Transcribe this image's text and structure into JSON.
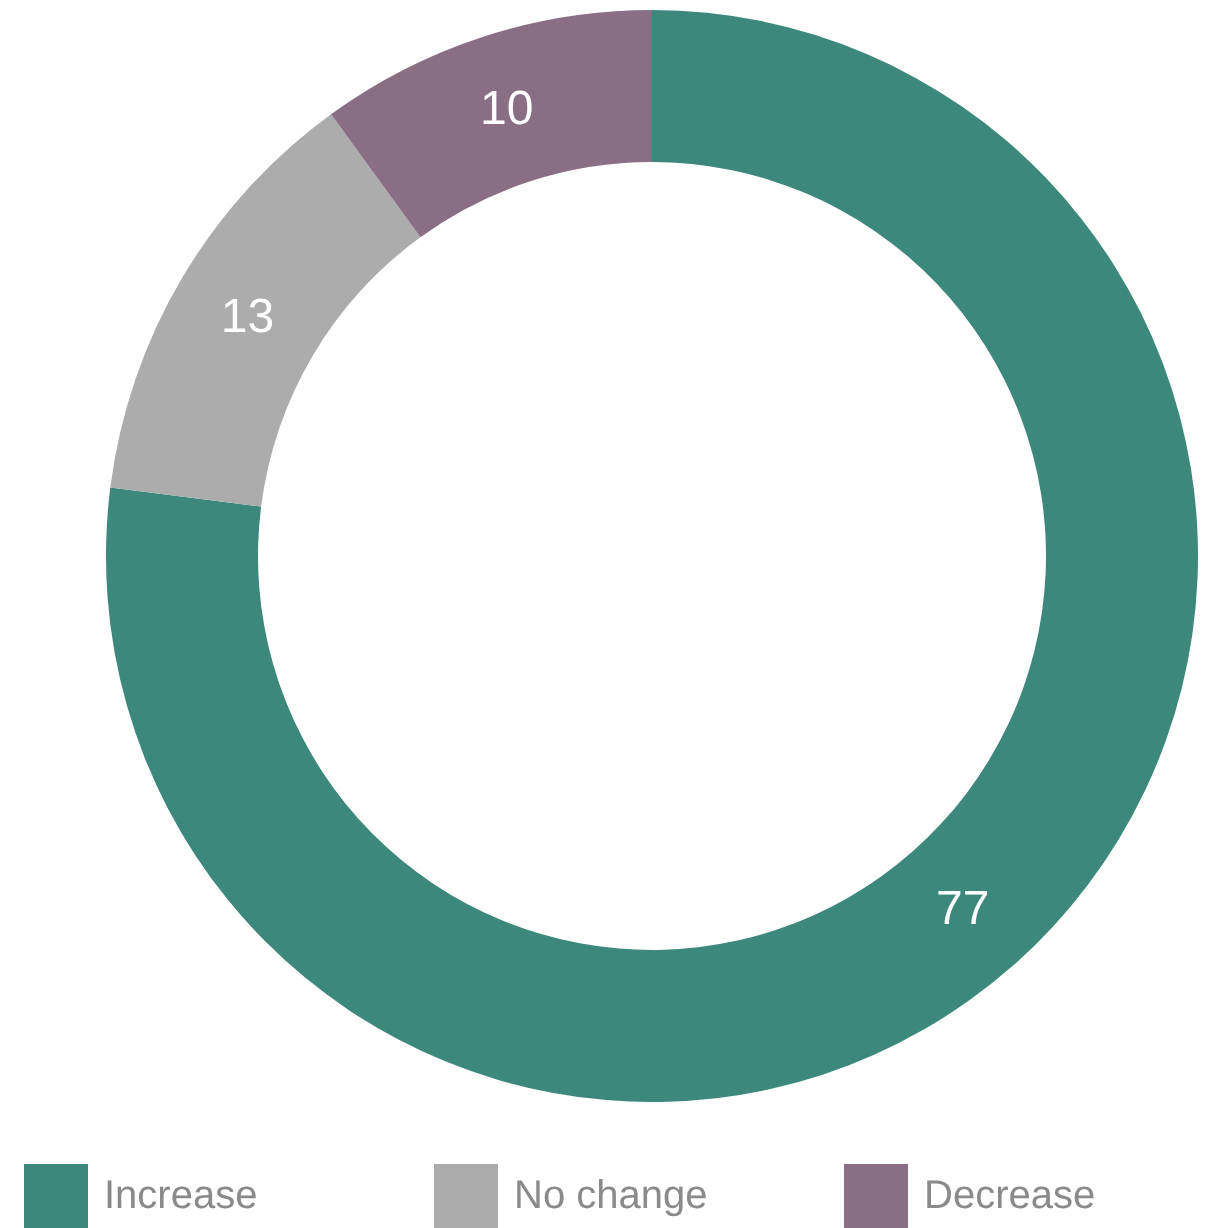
{
  "chart_data": {
    "type": "donut",
    "categories": [
      "Increase",
      "No change",
      "Decrease"
    ],
    "values": [
      77,
      13,
      10
    ],
    "colors": [
      "#3c887a",
      "#acacac",
      "#8a6f84"
    ],
    "data_labels": true,
    "legend": "bottom"
  }
}
